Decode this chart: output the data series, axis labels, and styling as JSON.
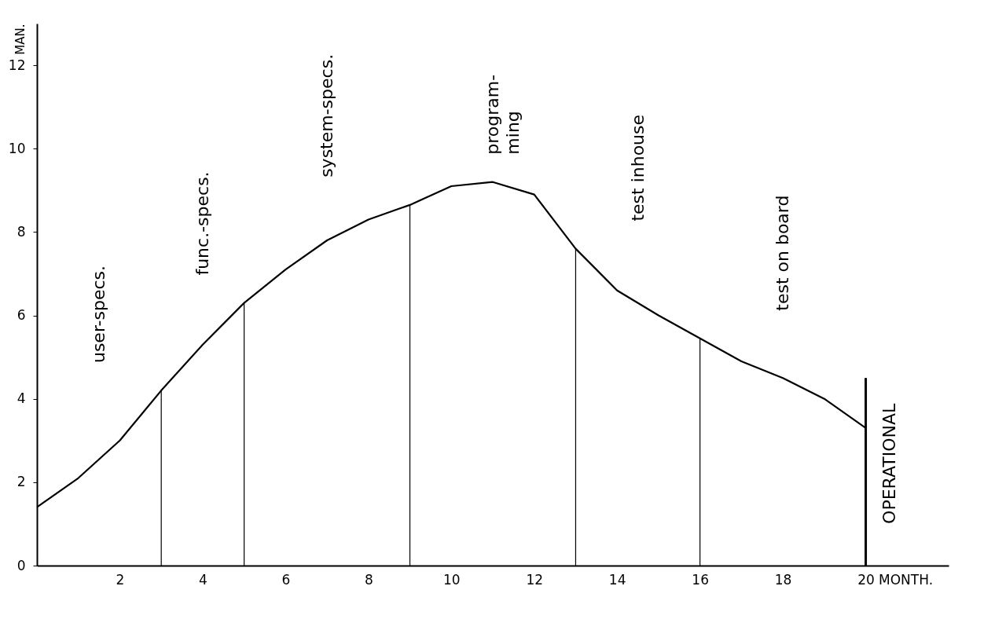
{
  "chart_data": {
    "type": "line",
    "xlabel": "MONTH.",
    "ylabel": "MAN.",
    "series": [
      {
        "color": "#000000",
        "x": [
          0,
          1,
          2,
          3,
          4,
          5,
          6,
          7,
          8,
          9,
          10,
          11,
          12,
          13,
          14,
          15,
          16,
          17,
          18,
          19,
          20
        ],
        "values": [
          1.4,
          2.1,
          3.0,
          4.2,
          5.3,
          6.3,
          7.1,
          7.8,
          8.3,
          8.65,
          9.1,
          9.2,
          8.9,
          7.6,
          6.6,
          6.0,
          5.45,
          4.9,
          4.5,
          4.0,
          3.3
        ]
      }
    ],
    "annotations": [
      "user-specs.",
      "func.-specs.",
      "system-specs.",
      "program-\nming",
      "test inhouse",
      "test on board"
    ],
    "ref_lines": [
      {
        "axis": "x",
        "value": 3
      },
      {
        "axis": "x",
        "value": 5
      },
      {
        "axis": "x",
        "value": 9
      },
      {
        "axis": "x",
        "value": 13
      },
      {
        "axis": "x",
        "value": 16
      },
      {
        "axis": "x",
        "value": 20,
        "label": "OPERATIONAL"
      }
    ],
    "xlim": [
      0,
      22
    ],
    "ylim": [
      0,
      13
    ],
    "xticks": [
      2,
      4,
      6,
      8,
      10,
      12,
      14,
      16,
      18,
      20
    ],
    "yticks": [
      0,
      2,
      4,
      6,
      8,
      10,
      12
    ],
    "grid": false,
    "marker": "none",
    "line_style": "solid"
  }
}
